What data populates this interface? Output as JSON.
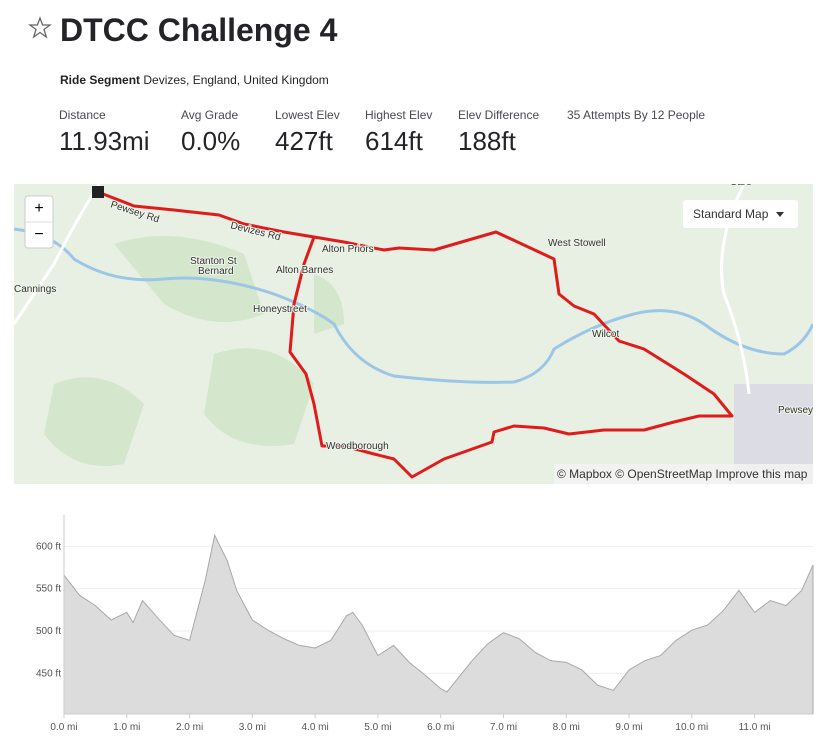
{
  "header": {
    "title": "DTCC Challenge 4",
    "segment_type": "Ride Segment",
    "location": "Devizes, England, United Kingdom"
  },
  "stats": [
    {
      "label": "Distance",
      "value": "11.93mi"
    },
    {
      "label": "Avg Grade",
      "value": "0.0%"
    },
    {
      "label": "Lowest Elev",
      "value": "427ft"
    },
    {
      "label": "Highest Elev",
      "value": "614ft"
    },
    {
      "label": "Elev Difference",
      "value": "188ft"
    }
  ],
  "attempts": "35 Attempts By 12 People",
  "map": {
    "zoom_in": "+",
    "zoom_out": "−",
    "style_button": "Standard Map",
    "attribution": "© Mapbox © OpenStreetMap Improve this map",
    "places": [
      {
        "name": "Pewsey Rd"
      },
      {
        "name": "Devizes Rd"
      },
      {
        "name": "Alton Priors"
      },
      {
        "name": "West Stowell"
      },
      {
        "name": "Stanton St"
      },
      {
        "name": "Bernard"
      },
      {
        "name": "Alton Barnes"
      },
      {
        "name": "Cannings"
      },
      {
        "name": "Honeystreet"
      },
      {
        "name": "Wilcot"
      },
      {
        "name": "Pewsey"
      },
      {
        "name": "Woodborough"
      },
      {
        "name": "Care"
      }
    ]
  },
  "chart_data": {
    "type": "area",
    "color": "#dcdcdc",
    "line_color": "#a8a8a8",
    "grid": true,
    "x": [
      0,
      0.25,
      0.5,
      0.75,
      1.0,
      1.1,
      1.25,
      1.5,
      1.75,
      2.0,
      2.25,
      2.4,
      2.6,
      2.75,
      3.0,
      3.25,
      3.5,
      3.75,
      4.0,
      4.25,
      4.5,
      4.6,
      4.75,
      5.0,
      5.25,
      5.5,
      5.75,
      6.0,
      6.1,
      6.25,
      6.5,
      6.75,
      7.0,
      7.25,
      7.5,
      7.75,
      8.0,
      8.25,
      8.5,
      8.75,
      9.0,
      9.25,
      9.5,
      9.75,
      10.0,
      10.25,
      10.5,
      10.75,
      11.0,
      11.25,
      11.5,
      11.75,
      11.93
    ],
    "values": [
      566,
      542,
      530,
      513,
      522,
      510,
      536,
      515,
      495,
      489,
      560,
      613,
      583,
      548,
      513,
      501,
      491,
      483,
      480,
      489,
      518,
      522,
      507,
      471,
      483,
      463,
      448,
      432,
      428,
      442,
      465,
      485,
      498,
      491,
      475,
      465,
      463,
      454,
      436,
      430,
      454,
      465,
      471,
      489,
      501,
      507,
      524,
      548,
      522,
      536,
      530,
      548,
      578
    ],
    "xlim": [
      0,
      11.93
    ],
    "ylim": [
      402,
      637
    ],
    "xticks": [
      {
        "value": 0,
        "label": "0.0 mi"
      },
      {
        "value": 1,
        "label": "1.0 mi"
      },
      {
        "value": 2,
        "label": "2.0 mi"
      },
      {
        "value": 3,
        "label": "3.0 mi"
      },
      {
        "value": 4,
        "label": "4.0 mi"
      },
      {
        "value": 5,
        "label": "5.0 mi"
      },
      {
        "value": 6,
        "label": "6.0 mi"
      },
      {
        "value": 7,
        "label": "7.0 mi"
      },
      {
        "value": 8,
        "label": "8.0 mi"
      },
      {
        "value": 9,
        "label": "9.0 mi"
      },
      {
        "value": 10,
        "label": "10.0 mi"
      },
      {
        "value": 11,
        "label": "11.0 mi"
      }
    ],
    "yticks": [
      {
        "value": 450,
        "label": "450 ft"
      },
      {
        "value": 500,
        "label": "500 ft"
      },
      {
        "value": 550,
        "label": "550 ft"
      },
      {
        "value": 600,
        "label": "600 ft"
      }
    ]
  }
}
